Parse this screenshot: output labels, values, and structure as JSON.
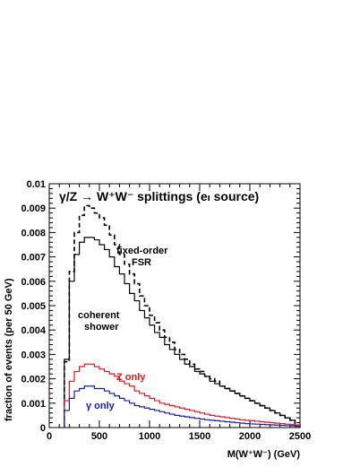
{
  "chart_data": {
    "type": "line",
    "title": "γ/Z → W⁺W⁻ splittings (eₗ source)",
    "xlabel": "M(W⁺W⁻)  (GeV)",
    "ylabel": "fraction of events (per 50 GeV)",
    "xlim": [
      0,
      2500
    ],
    "ylim": [
      0,
      0.01
    ],
    "xticks": [
      "0",
      "500",
      "1000",
      "1500",
      "2000",
      "2500"
    ],
    "yticks": [
      "0",
      "0.001",
      "0.002",
      "0.003",
      "0.004",
      "0.005",
      "0.006",
      "0.007",
      "0.008",
      "0.009",
      "0.01"
    ],
    "bin_width": 50,
    "bin_edges_start": 150,
    "series": [
      {
        "name": "fixed-order FSR",
        "style": "dashed",
        "color": "#000000",
        "values": [
          0.0027,
          0.0064,
          0.008,
          0.0087,
          0.0091,
          0.009,
          0.0088,
          0.0086,
          0.0083,
          0.0079,
          0.0075,
          0.0071,
          0.0067,
          0.0063,
          0.0059,
          0.0054,
          0.005,
          0.0046,
          0.0043,
          0.004,
          0.0037,
          0.0035,
          0.0032,
          0.003,
          0.0028,
          0.0026,
          0.0024,
          0.0023,
          0.0021,
          0.002,
          0.0019,
          0.0017,
          0.0016,
          0.0015,
          0.0014,
          0.0013,
          0.0012,
          0.0011,
          0.001,
          0.0009,
          0.0008,
          0.0007,
          0.0006,
          0.0005,
          0.0004,
          0.0003,
          0.0001
        ]
      },
      {
        "name": "coherent shower",
        "style": "solid",
        "color": "#000000",
        "values": [
          0.0028,
          0.006,
          0.0071,
          0.0076,
          0.0078,
          0.0078,
          0.0077,
          0.0075,
          0.0073,
          0.007,
          0.0066,
          0.0063,
          0.0059,
          0.0055,
          0.0052,
          0.0048,
          0.0045,
          0.0042,
          0.0039,
          0.0037,
          0.0034,
          0.0032,
          0.003,
          0.0028,
          0.0026,
          0.0025,
          0.0023,
          0.0022,
          0.0021,
          0.0019,
          0.0018,
          0.0017,
          0.0016,
          0.0015,
          0.0014,
          0.0013,
          0.0012,
          0.0011,
          0.001,
          0.0009,
          0.0008,
          0.0007,
          0.0006,
          0.0005,
          0.0004,
          0.0003,
          0.0001
        ]
      },
      {
        "name": "Z only",
        "style": "solid",
        "color": "#e8171d",
        "values": [
          0.0011,
          0.0019,
          0.0023,
          0.0025,
          0.0026,
          0.0026,
          0.0025,
          0.0024,
          0.0023,
          0.0022,
          0.0021,
          0.0019,
          0.0018,
          0.0017,
          0.0015,
          0.0014,
          0.0013,
          0.0012,
          0.0011,
          0.001,
          0.00095,
          0.0009,
          0.00085,
          0.0008,
          0.00075,
          0.0007,
          0.00065,
          0.0006,
          0.00055,
          0.0005,
          0.00047,
          0.00044,
          0.00041,
          0.00038,
          0.00035,
          0.00032,
          0.0003,
          0.00028,
          0.00026,
          0.00024,
          0.00022,
          0.0002,
          0.00018,
          0.00016,
          0.00014,
          0.00012,
          0.0001
        ]
      },
      {
        "name": "γ only",
        "style": "solid",
        "color": "#1a1ab5",
        "values": [
          0.0007,
          0.0012,
          0.0015,
          0.0016,
          0.0017,
          0.0017,
          0.0016,
          0.0016,
          0.0015,
          0.0014,
          0.0013,
          0.0012,
          0.0011,
          0.001,
          0.0009,
          0.00085,
          0.0008,
          0.00075,
          0.0007,
          0.00065,
          0.0006,
          0.00055,
          0.0005,
          0.00047,
          0.00044,
          0.00041,
          0.00038,
          0.00035,
          0.00032,
          0.0003,
          0.00028,
          0.00026,
          0.00024,
          0.00022,
          0.0002,
          0.00018,
          0.00016,
          0.00015,
          0.00014,
          0.00013,
          0.00012,
          0.00011,
          0.0001,
          9e-05,
          8e-05,
          7e-05,
          5e-05
        ]
      }
    ],
    "annotations": [
      {
        "text": "fixed-order",
        "color": "#000000"
      },
      {
        "text": "FSR",
        "color": "#000000"
      },
      {
        "text": "coherent",
        "color": "#000000"
      },
      {
        "text": "shower",
        "color": "#000000"
      },
      {
        "text": "Z only",
        "color": "#e8171d"
      },
      {
        "text": "γ only",
        "color": "#1a1ab5"
      }
    ]
  }
}
